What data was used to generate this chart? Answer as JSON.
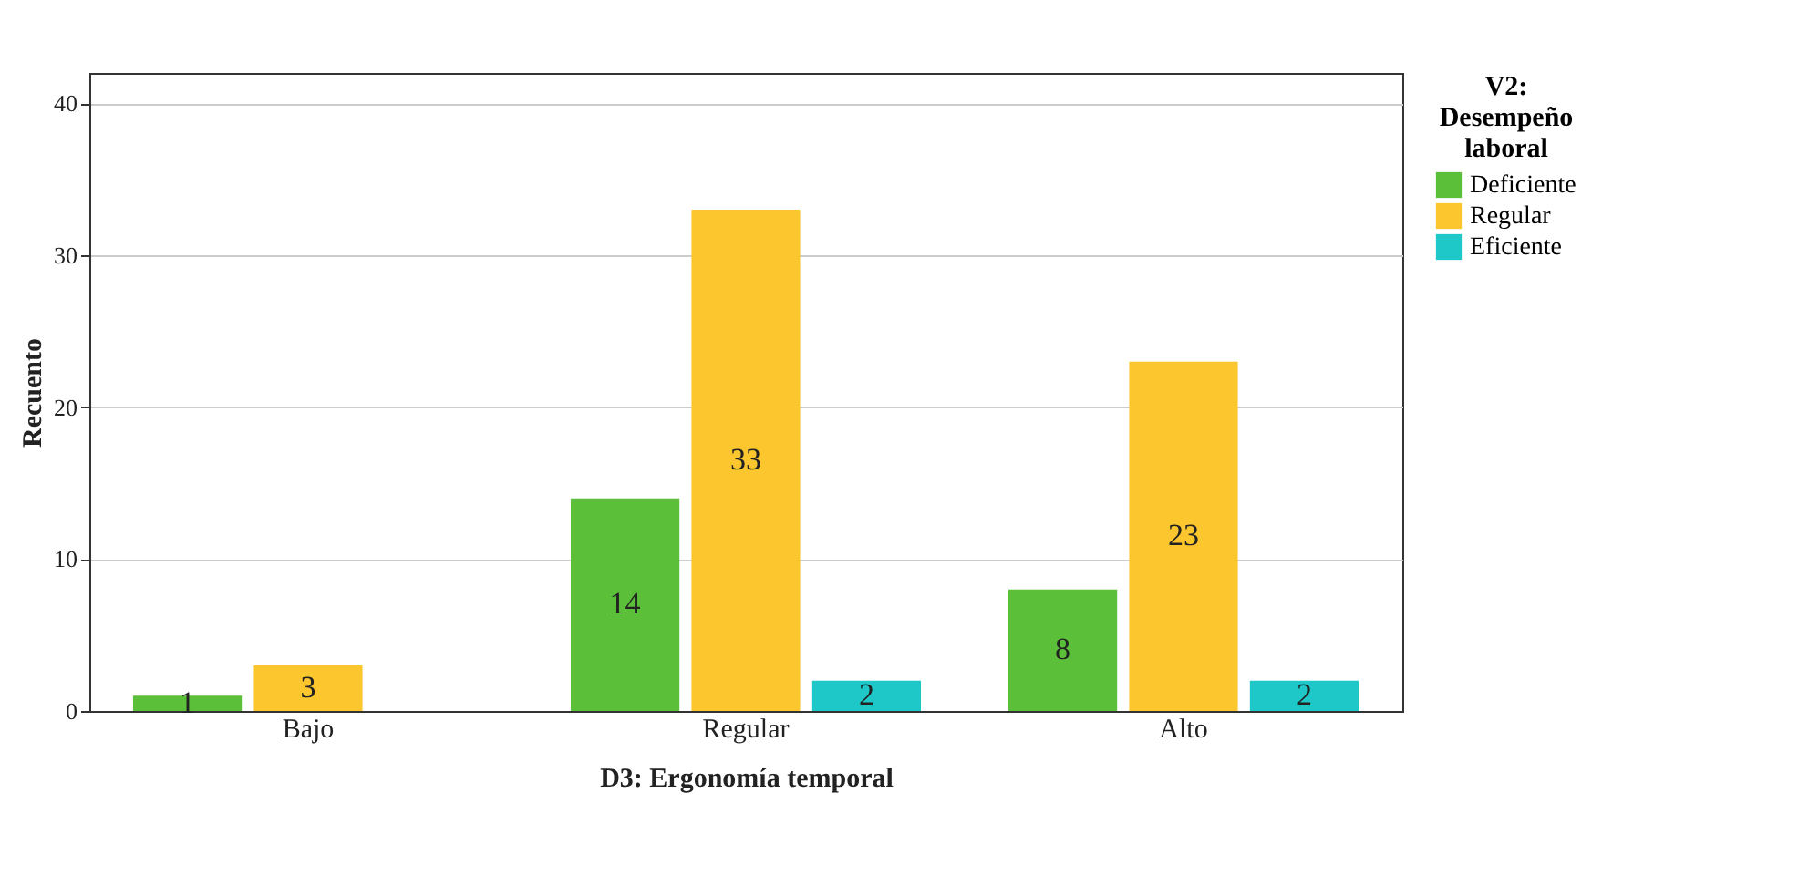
{
  "chart_data": {
    "type": "bar",
    "xlabel": "D3: Ergonomía temporal",
    "ylabel": "Recuento",
    "legend_title": "V2: Desempeño laboral",
    "categories": [
      "Bajo",
      "Regular",
      "Alto"
    ],
    "series": [
      {
        "name": "Deficiente",
        "color": "#5cbf3a",
        "values": [
          1,
          14,
          8
        ]
      },
      {
        "name": "Regular",
        "color": "#fcc62f",
        "values": [
          3,
          33,
          23
        ]
      },
      {
        "name": "Eficiente",
        "color": "#1ec8c8",
        "values": [
          null,
          2,
          2
        ]
      }
    ],
    "ylim": [
      0,
      42
    ],
    "yticks": [
      0,
      10,
      20,
      30,
      40
    ],
    "grid": "y",
    "legend": "top right",
    "data_labels": true
  }
}
